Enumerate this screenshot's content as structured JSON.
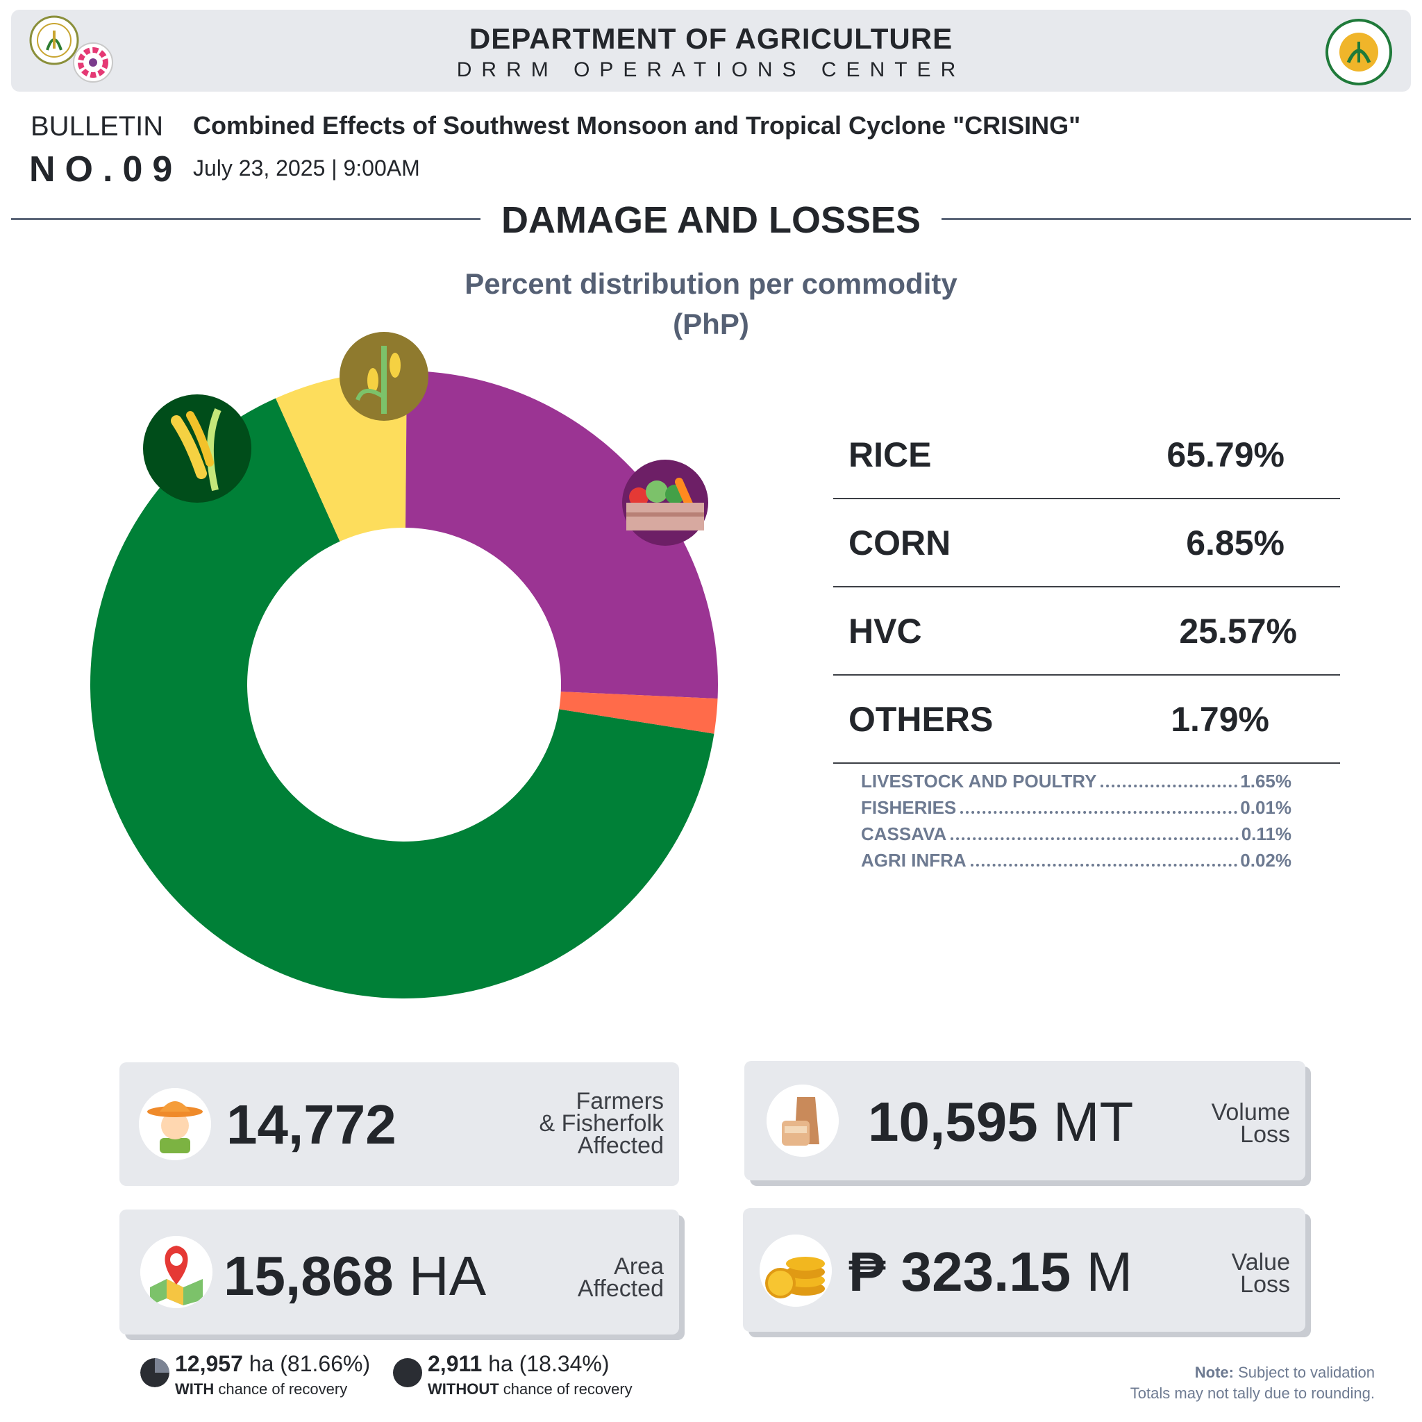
{
  "header": {
    "title": "DEPARTMENT OF AGRICULTURE",
    "subtitle": "DRRM OPERATIONS CENTER"
  },
  "bulletin": {
    "word": "BULLETIN",
    "number": "NO.09",
    "title": "Combined Effects of Southwest Monsoon and Tropical Cyclone  \"CRISING\"",
    "date": "July 23, 2025 | 9:00AM"
  },
  "section_title": "DAMAGE AND LOSSES",
  "chart_data": {
    "type": "pie",
    "title": "Percent distribution per commodity",
    "subtitle": "(PhP)",
    "categories": [
      "RICE",
      "CORN",
      "HVC",
      "OTHERS"
    ],
    "values": [
      65.79,
      6.85,
      25.57,
      1.79
    ],
    "colors": [
      "#008037",
      "#fddd5c",
      "#9b3493",
      "#ff6b4a"
    ],
    "icons": [
      "rice-icon",
      "corn-icon",
      "vegetables-icon"
    ],
    "value_labels": [
      "65.79%",
      "6.85%",
      "25.57%",
      "1.79%"
    ],
    "others_breakdown": [
      {
        "label": "LIVESTOCK AND POULTRY",
        "value": "1.65%"
      },
      {
        "label": "FISHERIES",
        "value": "0.01%"
      },
      {
        "label": "CASSAVA",
        "value": "0.11%"
      },
      {
        "label": "AGRI INFRA",
        "value": "0.02%"
      }
    ]
  },
  "stats": {
    "farmers": {
      "value": "14,772",
      "label1": "Farmers",
      "label2": "& Fisherfolk",
      "label3": "Affected",
      "icon": "farmer-icon"
    },
    "area": {
      "value": "15,868",
      "unit": " HA",
      "label1": "Area",
      "label2": "Affected",
      "icon": "map-pin-icon"
    },
    "volume": {
      "value": "10,595",
      "unit": " MT",
      "label1": "Volume",
      "label2": "Loss",
      "icon": "grain-sacks-icon"
    },
    "value_loss": {
      "value": "₱ 323.15",
      "unit": " M",
      "label1": "Value",
      "label2": "Loss",
      "icon": "coins-icon"
    }
  },
  "recovery": {
    "with": {
      "amount": "12,957",
      "unit": "ha",
      "percent": "(81.66%)",
      "word": "WITH",
      "rest": "chance of recovery"
    },
    "without": {
      "amount": "2,911",
      "unit": "ha",
      "percent": "(18.34%)",
      "word": "WITHOUT",
      "rest": "chance of recovery"
    }
  },
  "note": {
    "label": "Note:",
    "line1": "Subject to validation",
    "line2": "Totals may not tally due to rounding."
  }
}
